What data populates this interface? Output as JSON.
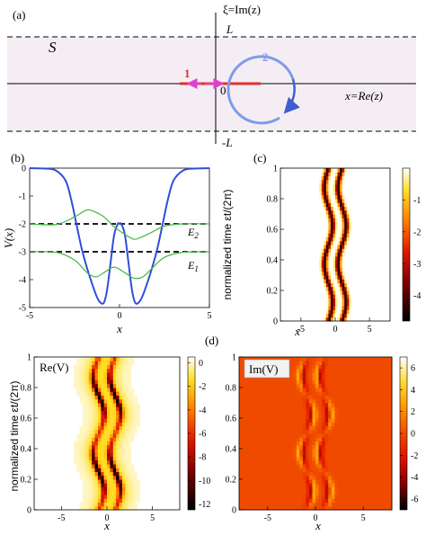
{
  "panel_labels": {
    "a": "(a)",
    "b": "(b)",
    "c": "(c)",
    "d": "(d)"
  },
  "panel_a": {
    "xi_axis_label": "ξ=Im(z)",
    "x_axis_label": "x=Re(z)",
    "strip_label": "S",
    "L_label": "L",
    "minus_L_label": "-L",
    "zero_label": "0",
    "path1_label": "1",
    "path2_label": "2",
    "colors": {
      "strip": "#f4eef4",
      "path1": "#e03030",
      "arrow1": "#e040d0",
      "path2": "#7f9be8",
      "arrow2": "#3f5fd0"
    }
  },
  "chart_data": [
    {
      "panel": "(b)",
      "type": "line",
      "xlabel": "x",
      "ylabel": "V(x)",
      "xlim": [
        -5,
        5
      ],
      "ylim": [
        -5,
        0
      ],
      "xticks": [
        -5,
        0,
        5
      ],
      "yticks": [
        0,
        -1,
        -2,
        -3,
        -4,
        -5
      ],
      "energy_levels": [
        {
          "label": "E2",
          "value": -2.0
        },
        {
          "label": "E1",
          "value": -3.0
        }
      ],
      "series": [
        {
          "color": "#2f4fd8",
          "x": [
            -5,
            -4,
            -3.5,
            -3,
            -2.7,
            -2.4,
            -2.1,
            -1.8,
            -1.5,
            -1.2,
            -0.9,
            -0.7,
            -0.5,
            -0.3,
            -0.1,
            0,
            0.1,
            0.3,
            0.5,
            0.7,
            0.9,
            1.2,
            1.5,
            1.8,
            2.1,
            2.4,
            2.7,
            3,
            3.5,
            4,
            5
          ],
          "y": [
            0,
            -0.02,
            -0.1,
            -0.45,
            -1.1,
            -2.0,
            -2.9,
            -3.6,
            -4.2,
            -4.7,
            -4.85,
            -4.4,
            -3.4,
            -2.4,
            -2.0,
            -2.0,
            -2.0,
            -2.4,
            -3.4,
            -4.4,
            -4.85,
            -4.7,
            -4.2,
            -3.6,
            -2.9,
            -2.0,
            -1.1,
            -0.45,
            -0.1,
            -0.02,
            0
          ]
        },
        {
          "color": "#44b844",
          "x": [
            -5,
            -3.5,
            -2.5,
            -1.8,
            -1.2,
            -0.8,
            -0.3,
            0.3,
            0.8,
            1.2,
            1.8,
            2.5,
            3.5,
            5
          ],
          "y": [
            -2.0,
            -2.02,
            -1.75,
            -1.5,
            -1.62,
            -1.78,
            -2.1,
            -2.38,
            -2.55,
            -2.48,
            -2.3,
            -2.08,
            -2.0,
            -2.0
          ]
        },
        {
          "color": "#44b844",
          "x": [
            -5,
            -3.5,
            -2.5,
            -1.8,
            -1.3,
            -0.8,
            -0.3,
            0.3,
            0.8,
            1.3,
            1.8,
            2.5,
            3.5,
            5
          ],
          "y": [
            -3.0,
            -3.02,
            -3.3,
            -3.75,
            -3.9,
            -3.72,
            -3.55,
            -3.75,
            -3.95,
            -3.9,
            -3.6,
            -3.2,
            -3.02,
            -3.0
          ]
        }
      ]
    },
    {
      "panel": "(c)",
      "type": "heatmap",
      "xlabel": "x",
      "ylabel": "normalized time εt/(2π)",
      "xlim": [
        -8,
        8
      ],
      "ylim": [
        0,
        1
      ],
      "xticks": [
        -5,
        0,
        5
      ],
      "yticks": [
        0,
        0.2,
        0.4,
        0.6,
        0.8,
        1
      ],
      "colorbar_ticks": [
        -1,
        -2,
        -3,
        -4
      ],
      "colorbar_range": [
        -4.8,
        0
      ],
      "wells": {
        "center_amplitude": 0.6,
        "half_separation": 1.0,
        "width": 0.38,
        "depth": -4.8
      }
    },
    {
      "panel": "(d) left",
      "type": "heatmap",
      "title": "Re(V)",
      "xlabel": "x",
      "ylabel": "normalized time εt/(2π)",
      "xlim": [
        -8,
        8
      ],
      "ylim": [
        0,
        1
      ],
      "xticks": [
        -5,
        0,
        5
      ],
      "yticks": [
        0,
        0.2,
        0.4,
        0.6,
        0.8,
        1
      ],
      "colorbar_ticks": [
        0,
        -2,
        -4,
        -6,
        -8,
        -10,
        -12
      ],
      "colorbar_range": [
        -12.5,
        0.5
      ]
    },
    {
      "panel": "(d) right",
      "type": "heatmap",
      "title": "Im(V)",
      "xlabel": "x",
      "xlim": [
        -8,
        8
      ],
      "ylim": [
        0,
        1
      ],
      "xticks": [
        -5,
        0,
        5
      ],
      "yticks": [
        0,
        0.2,
        0.4,
        0.6,
        0.8,
        1
      ],
      "colorbar_ticks": [
        6,
        4,
        2,
        0,
        -2,
        -4,
        -6
      ],
      "colorbar_range": [
        -7,
        7
      ]
    }
  ]
}
